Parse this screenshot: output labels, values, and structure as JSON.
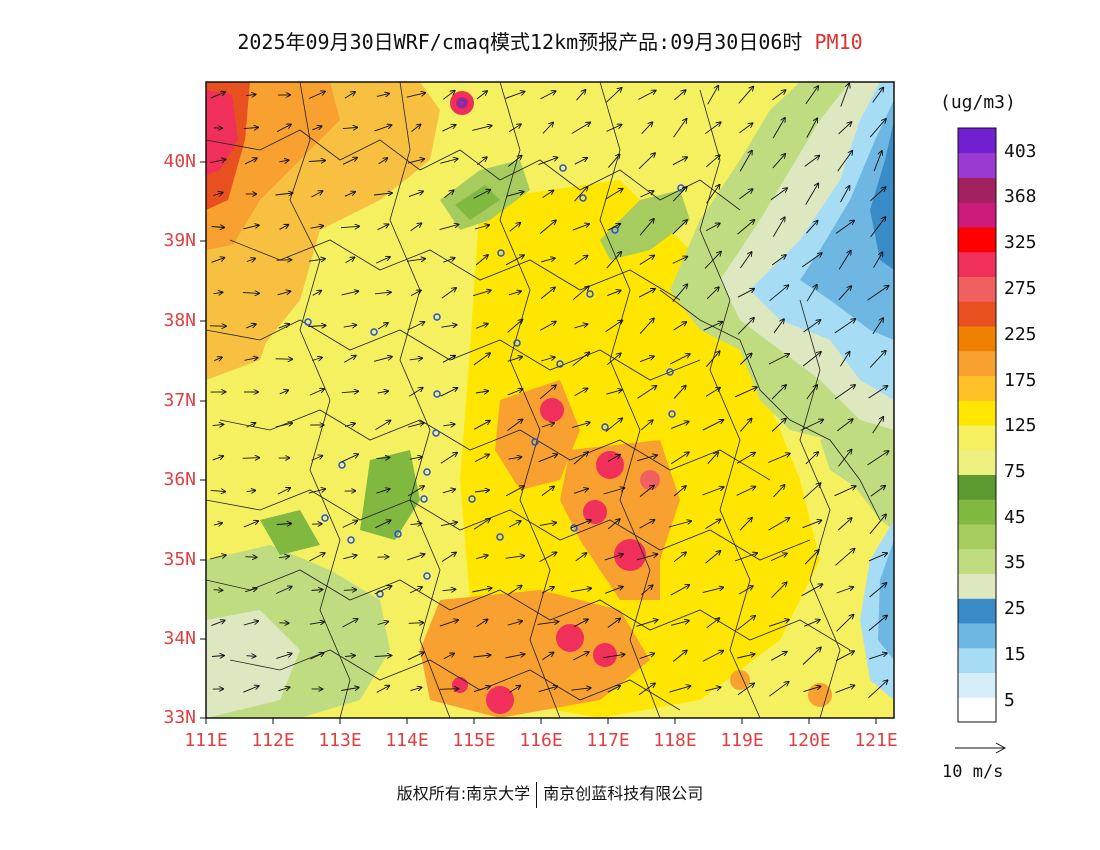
{
  "title": {
    "text": "2025年09月30日WRF/cmaq模式12km预报产品:09月30日06时",
    "pollutant": "PM10"
  },
  "map": {
    "lat_labels": [
      "40N",
      "39N",
      "38N",
      "37N",
      "36N",
      "35N",
      "34N",
      "33N"
    ],
    "lon_labels": [
      "111E",
      "112E",
      "113E",
      "114E",
      "115E",
      "116E",
      "117E",
      "118E",
      "119E",
      "120E",
      "121E"
    ],
    "lat_range": [
      33,
      41
    ],
    "lon_range": [
      111,
      121.3
    ]
  },
  "colorbar": {
    "unit": "(ug/m3)",
    "labels": [
      "403",
      "368",
      "325",
      "275",
      "225",
      "175",
      "125",
      "75",
      "45",
      "35",
      "25",
      "15",
      "5"
    ],
    "colors": [
      "#ffffff",
      "#d6eefa",
      "#a6dcf4",
      "#6fb7e3",
      "#3a8cc8",
      "#dde8c0",
      "#c0dc80",
      "#a6cc60",
      "#80b840",
      "#5a9a30",
      "#eef080",
      "#f4f060",
      "#ffe600",
      "#ffc028",
      "#f8a030",
      "#f08000",
      "#e85020",
      "#f06060",
      "#f0305a",
      "#ff0000",
      "#cc1a7a",
      "#a02060",
      "#9a3ad0",
      "#7020d0"
    ]
  },
  "wind_reference": {
    "label": "10 m/s"
  },
  "footer": {
    "left": "版权所有:南京大学",
    "right": "南京创蓝科技有限公司"
  }
}
